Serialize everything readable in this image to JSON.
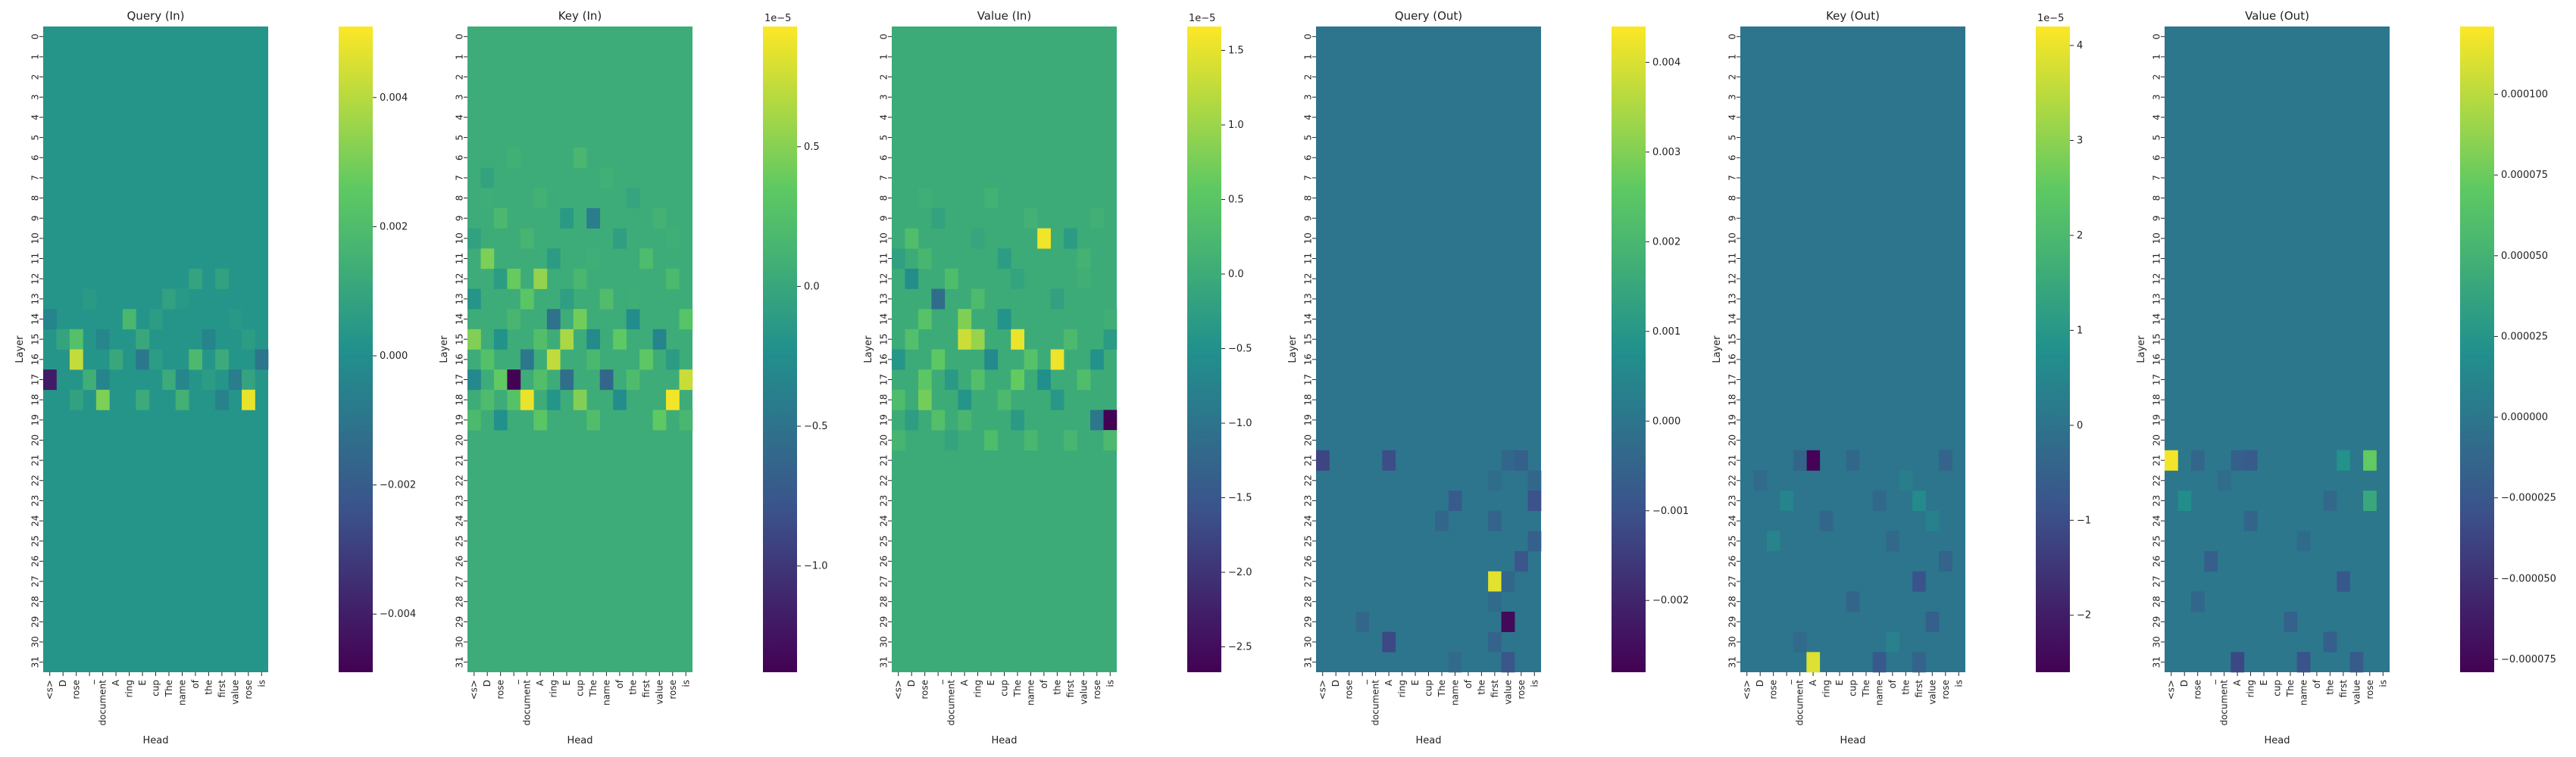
{
  "figure": {
    "layers": [
      "0",
      "1",
      "2",
      "3",
      "4",
      "5",
      "6",
      "7",
      "8",
      "9",
      "10",
      "11",
      "12",
      "13",
      "14",
      "15",
      "16",
      "17",
      "18",
      "19",
      "20",
      "21",
      "22",
      "23",
      "24",
      "25",
      "26",
      "27",
      "28",
      "29",
      "30",
      "31"
    ],
    "heads": [
      "<s>",
      "D",
      "rose",
      "_",
      "document",
      "A",
      "ring",
      "E",
      "cup",
      "The",
      "name",
      "of",
      "the",
      "first",
      "value",
      "rose",
      "is"
    ],
    "xlabel": "Head",
    "ylabel": "Layer",
    "colormap": [
      "#440154",
      "#3b528b",
      "#21918c",
      "#5ec962",
      "#fde725"
    ],
    "nan_color": "#ffffff"
  },
  "chart_data": [
    {
      "type": "heatmap",
      "title": "Query (In)",
      "colorbar": {
        "vmin": -0.0049,
        "vmax": 0.0051,
        "ticks": [
          -0.004,
          -0.002,
          0.0,
          0.002,
          0.004
        ],
        "tick_labels": [
          "−0.004",
          "−0.002",
          "0.000",
          "0.002",
          "0.004"
        ],
        "offset_text": ""
      },
      "background_value": 0.0003,
      "cells": [
        [
          12,
          11,
          0.0009
        ],
        [
          12,
          13,
          0.0008
        ],
        [
          13,
          3,
          0.0005
        ],
        [
          13,
          9,
          0.0008
        ],
        [
          13,
          10,
          0.0004
        ],
        [
          14,
          0,
          -0.0004
        ],
        [
          14,
          6,
          0.0018
        ],
        [
          14,
          8,
          0.0006
        ],
        [
          14,
          14,
          0.0004
        ],
        [
          15,
          1,
          0.0009
        ],
        [
          15,
          2,
          0.0022
        ],
        [
          15,
          4,
          -0.0003
        ],
        [
          15,
          7,
          0.0011
        ],
        [
          15,
          9,
          0.0003
        ],
        [
          15,
          12,
          -0.0004
        ],
        [
          15,
          15,
          0.0006
        ],
        [
          16,
          2,
          0.0042
        ],
        [
          16,
          5,
          0.0011
        ],
        [
          16,
          7,
          -0.0009
        ],
        [
          16,
          8,
          0.0006
        ],
        [
          16,
          11,
          0.0019
        ],
        [
          16,
          13,
          0.0012
        ],
        [
          16,
          16,
          -0.001
        ],
        [
          17,
          0,
          -0.0041
        ],
        [
          17,
          3,
          0.0014
        ],
        [
          17,
          4,
          -0.0004
        ],
        [
          17,
          9,
          0.0012
        ],
        [
          17,
          10,
          -0.0003
        ],
        [
          17,
          12,
          0.0006
        ],
        [
          17,
          14,
          -0.0007
        ],
        [
          17,
          15,
          0.0009
        ],
        [
          18,
          2,
          0.0008
        ],
        [
          18,
          4,
          0.0031
        ],
        [
          18,
          7,
          0.0012
        ],
        [
          18,
          10,
          0.0015
        ],
        [
          18,
          13,
          -0.0005
        ],
        [
          18,
          15,
          0.0048
        ]
      ]
    },
    {
      "type": "heatmap",
      "title": "Key (In)",
      "colorbar": {
        "vmin": -1.38,
        "vmax": 0.93,
        "ticks": [
          -1.0,
          -0.5,
          0.0,
          0.5
        ],
        "tick_labels": [
          "−1.0",
          "−0.5",
          "0.0",
          "0.5"
        ],
        "offset_text": "1e−5"
      },
      "background_value": 0.05,
      "cells": [
        [
          6,
          3,
          0.09
        ],
        [
          6,
          8,
          0.16
        ],
        [
          7,
          1,
          -0.05
        ],
        [
          7,
          10,
          0.08
        ],
        [
          8,
          5,
          0.11
        ],
        [
          8,
          12,
          -0.03
        ],
        [
          9,
          2,
          0.18
        ],
        [
          9,
          7,
          -0.14
        ],
        [
          9,
          9,
          -0.41
        ],
        [
          9,
          14,
          0.12
        ],
        [
          10,
          0,
          -0.06
        ],
        [
          10,
          4,
          0.14
        ],
        [
          10,
          11,
          -0.09
        ],
        [
          11,
          1,
          0.46
        ],
        [
          11,
          6,
          -0.12
        ],
        [
          11,
          13,
          0.21
        ],
        [
          12,
          2,
          -0.11
        ],
        [
          12,
          3,
          0.38
        ],
        [
          12,
          5,
          0.55
        ],
        [
          12,
          8,
          0.16
        ],
        [
          12,
          15,
          0.19
        ],
        [
          13,
          0,
          -0.18
        ],
        [
          13,
          4,
          0.31
        ],
        [
          13,
          7,
          -0.09
        ],
        [
          13,
          10,
          0.22
        ],
        [
          14,
          3,
          0.15
        ],
        [
          14,
          6,
          -0.52
        ],
        [
          14,
          8,
          0.42
        ],
        [
          14,
          12,
          -0.26
        ],
        [
          14,
          16,
          0.29
        ],
        [
          15,
          0,
          0.48
        ],
        [
          15,
          2,
          -0.21
        ],
        [
          15,
          5,
          0.24
        ],
        [
          15,
          7,
          0.63
        ],
        [
          15,
          9,
          -0.29
        ],
        [
          15,
          11,
          0.35
        ],
        [
          15,
          14,
          -0.34
        ],
        [
          16,
          1,
          0.26
        ],
        [
          16,
          4,
          -0.45
        ],
        [
          16,
          6,
          0.71
        ],
        [
          16,
          9,
          0.18
        ],
        [
          16,
          13,
          0.33
        ],
        [
          16,
          15,
          -0.12
        ],
        [
          17,
          0,
          -0.31
        ],
        [
          17,
          2,
          0.36
        ],
        [
          17,
          3,
          -1.37
        ],
        [
          17,
          5,
          0.24
        ],
        [
          17,
          7,
          -0.55
        ],
        [
          17,
          10,
          -0.62
        ],
        [
          17,
          12,
          0.21
        ],
        [
          17,
          16,
          0.74
        ],
        [
          18,
          1,
          0.21
        ],
        [
          18,
          3,
          0.28
        ],
        [
          18,
          4,
          0.86
        ],
        [
          18,
          6,
          -0.19
        ],
        [
          18,
          8,
          0.48
        ],
        [
          18,
          11,
          -0.27
        ],
        [
          18,
          15,
          0.89
        ],
        [
          19,
          0,
          0.19
        ],
        [
          19,
          2,
          -0.22
        ],
        [
          19,
          5,
          0.31
        ],
        [
          19,
          9,
          0.23
        ],
        [
          19,
          14,
          0.35
        ],
        [
          19,
          16,
          0.16
        ],
        [
          10,
          15,
          0.07
        ],
        [
          11,
          9,
          0.07
        ],
        [
          13,
          12,
          0.06
        ],
        [
          8,
          1,
          0.06
        ]
      ]
    },
    {
      "type": "heatmap",
      "title": "Value (In)",
      "colorbar": {
        "vmin": -2.67,
        "vmax": 1.66,
        "ticks": [
          -2.5,
          -2.0,
          -1.5,
          -1.0,
          -0.5,
          0.0,
          0.5,
          1.0,
          1.5
        ],
        "tick_labels": [
          "−2.5",
          "−2.0",
          "−1.5",
          "−1.0",
          "−0.5",
          "0.0",
          "0.5",
          "1.0",
          "1.5"
        ],
        "offset_text": "1e−5"
      },
      "background_value": 0.0,
      "cells": [
        [
          8,
          7,
          0.12
        ],
        [
          9,
          3,
          -0.18
        ],
        [
          9,
          10,
          0.09
        ],
        [
          10,
          1,
          0.35
        ],
        [
          10,
          6,
          -0.12
        ],
        [
          10,
          11,
          1.58
        ],
        [
          10,
          13,
          -0.31
        ],
        [
          11,
          0,
          -0.22
        ],
        [
          11,
          2,
          0.21
        ],
        [
          11,
          8,
          -0.29
        ],
        [
          11,
          14,
          0.14
        ],
        [
          12,
          1,
          -0.55
        ],
        [
          12,
          4,
          0.32
        ],
        [
          12,
          9,
          -0.16
        ],
        [
          13,
          3,
          -1.12
        ],
        [
          13,
          6,
          0.28
        ],
        [
          13,
          12,
          -0.21
        ],
        [
          14,
          2,
          0.45
        ],
        [
          14,
          5,
          0.81
        ],
        [
          14,
          8,
          -0.46
        ],
        [
          15,
          1,
          0.38
        ],
        [
          15,
          5,
          1.32
        ],
        [
          15,
          6,
          0.96
        ],
        [
          15,
          9,
          1.54
        ],
        [
          15,
          13,
          0.27
        ],
        [
          15,
          16,
          -0.31
        ],
        [
          16,
          0,
          -0.41
        ],
        [
          16,
          3,
          0.56
        ],
        [
          16,
          7,
          -0.62
        ],
        [
          16,
          10,
          0.42
        ],
        [
          16,
          12,
          1.55
        ],
        [
          16,
          15,
          -0.48
        ],
        [
          17,
          2,
          0.52
        ],
        [
          17,
          4,
          -0.34
        ],
        [
          17,
          6,
          0.38
        ],
        [
          17,
          9,
          0.61
        ],
        [
          17,
          11,
          -0.52
        ],
        [
          17,
          14,
          0.34
        ],
        [
          18,
          0,
          0.31
        ],
        [
          18,
          2,
          0.72
        ],
        [
          18,
          5,
          -0.44
        ],
        [
          18,
          8,
          0.26
        ],
        [
          18,
          12,
          -0.38
        ],
        [
          19,
          1,
          -0.27
        ],
        [
          19,
          3,
          0.39
        ],
        [
          19,
          5,
          0.21
        ],
        [
          19,
          9,
          -0.33
        ],
        [
          19,
          15,
          -0.95
        ],
        [
          19,
          16,
          -2.66
        ],
        [
          20,
          0,
          0.18
        ],
        [
          20,
          4,
          -0.15
        ],
        [
          20,
          7,
          0.32
        ],
        [
          20,
          10,
          0.22
        ],
        [
          20,
          13,
          0.19
        ],
        [
          20,
          16,
          0.27
        ],
        [
          8,
          2,
          0.05
        ],
        [
          9,
          15,
          0.07
        ],
        [
          12,
          14,
          0.06
        ],
        [
          14,
          16,
          0.05
        ]
      ]
    },
    {
      "type": "heatmap",
      "title": "Query (Out)",
      "colorbar": {
        "vmin": -0.0028,
        "vmax": 0.0044,
        "ticks": [
          -0.002,
          -0.001,
          0.0,
          0.001,
          0.002,
          0.003,
          0.004
        ],
        "tick_labels": [
          "−0.002",
          "−0.001",
          "0.000",
          "0.001",
          "0.002",
          "0.003",
          "0.004"
        ],
        "offset_text": ""
      },
      "background_value": 0.0,
      "cells": [
        [
          21,
          0,
          -0.0013
        ],
        [
          21,
          5,
          -0.0011
        ],
        [
          21,
          14,
          -0.0004
        ],
        [
          21,
          15,
          -0.0006
        ],
        [
          22,
          13,
          -0.0002
        ],
        [
          22,
          16,
          -0.0004
        ],
        [
          23,
          10,
          -0.0007
        ],
        [
          23,
          16,
          -0.001
        ],
        [
          24,
          9,
          -0.0004
        ],
        [
          24,
          13,
          -0.0005
        ],
        [
          25,
          16,
          -0.0006
        ],
        [
          26,
          15,
          -0.0009
        ],
        [
          27,
          13,
          0.0041
        ],
        [
          27,
          14,
          -0.0004
        ],
        [
          28,
          13,
          -0.0003
        ],
        [
          29,
          3,
          -0.0004
        ],
        [
          29,
          14,
          -0.0026
        ],
        [
          30,
          5,
          -0.0012
        ],
        [
          30,
          13,
          -0.0005
        ],
        [
          31,
          10,
          -0.0003
        ],
        [
          31,
          14,
          -0.0009
        ],
        [
          32,
          13,
          0.0008
        ],
        [
          32,
          15,
          -0.0012
        ]
      ]
    },
    {
      "type": "heatmap",
      "title": "Key (Out)",
      "colorbar": {
        "vmin": -2.6,
        "vmax": 4.2,
        "ticks": [
          -2,
          -1,
          0,
          1,
          2,
          3,
          4
        ],
        "tick_labels": [
          "−2",
          "−1",
          "0",
          "1",
          "2",
          "3",
          "4"
        ],
        "offset_text": "1e−5"
      },
      "background_value": 0.05,
      "cells": [
        [
          21,
          5,
          -2.55
        ],
        [
          21,
          4,
          -0.38
        ],
        [
          21,
          8,
          -0.32
        ],
        [
          21,
          15,
          -0.41
        ],
        [
          22,
          1,
          -0.25
        ],
        [
          22,
          12,
          0.28
        ],
        [
          23,
          3,
          0.46
        ],
        [
          23,
          13,
          0.61
        ],
        [
          23,
          10,
          -0.31
        ],
        [
          24,
          6,
          -0.35
        ],
        [
          24,
          14,
          0.38
        ],
        [
          25,
          2,
          0.42
        ],
        [
          25,
          11,
          -0.28
        ],
        [
          26,
          15,
          -0.45
        ],
        [
          27,
          13,
          -0.85
        ],
        [
          28,
          8,
          -0.38
        ],
        [
          29,
          14,
          -0.52
        ],
        [
          30,
          4,
          -0.26
        ],
        [
          30,
          11,
          0.36
        ],
        [
          31,
          5,
          3.85
        ],
        [
          31,
          13,
          -0.42
        ],
        [
          32,
          9,
          -2.21
        ],
        [
          32,
          14,
          0.52
        ],
        [
          32,
          16,
          -0.35
        ],
        [
          31,
          10,
          -0.72
        ]
      ]
    },
    {
      "type": "heatmap",
      "title": "Value (Out)",
      "colorbar": {
        "vmin": -7.9e-05,
        "vmax": 0.000121,
        "ticks": [
          -7.5e-05,
          -5e-05,
          -2.5e-05,
          0.0,
          2.5e-05,
          5e-05,
          7.5e-05,
          0.0001
        ],
        "tick_labels": [
          "−0.000075",
          "−0.000050",
          "−0.000025",
          "0.000000",
          "0.000025",
          "0.000050",
          "0.000075",
          "0.000100"
        ],
        "offset_text": ""
      },
      "background_value": 0.0,
      "cells": [
        [
          21,
          0,
          0.000118
        ],
        [
          21,
          2,
          -1.2e-05
        ],
        [
          21,
          5,
          -1.8e-05
        ],
        [
          21,
          6,
          -2.1e-05
        ],
        [
          21,
          13,
          2.2e-05
        ],
        [
          21,
          15,
          7.2e-05
        ],
        [
          22,
          4,
          -8e-06
        ],
        [
          23,
          1,
          1.8e-05
        ],
        [
          23,
          12,
          -1.1e-05
        ],
        [
          23,
          15,
          4.1e-05
        ],
        [
          24,
          6,
          -1.4e-05
        ],
        [
          25,
          10,
          -9e-06
        ],
        [
          26,
          3,
          -1.9e-05
        ],
        [
          27,
          13,
          -2.4e-05
        ],
        [
          28,
          2,
          -1.2e-05
        ],
        [
          29,
          9,
          -1.6e-05
        ],
        [
          30,
          12,
          -1.8e-05
        ],
        [
          31,
          5,
          -3.5e-05
        ],
        [
          31,
          10,
          -2.8e-05
        ],
        [
          31,
          14,
          -2.2e-05
        ],
        [
          32,
          8,
          -7.6e-05
        ],
        [
          32,
          13,
          -1.8e-05
        ],
        [
          32,
          16,
          -3.1e-05
        ]
      ]
    }
  ]
}
